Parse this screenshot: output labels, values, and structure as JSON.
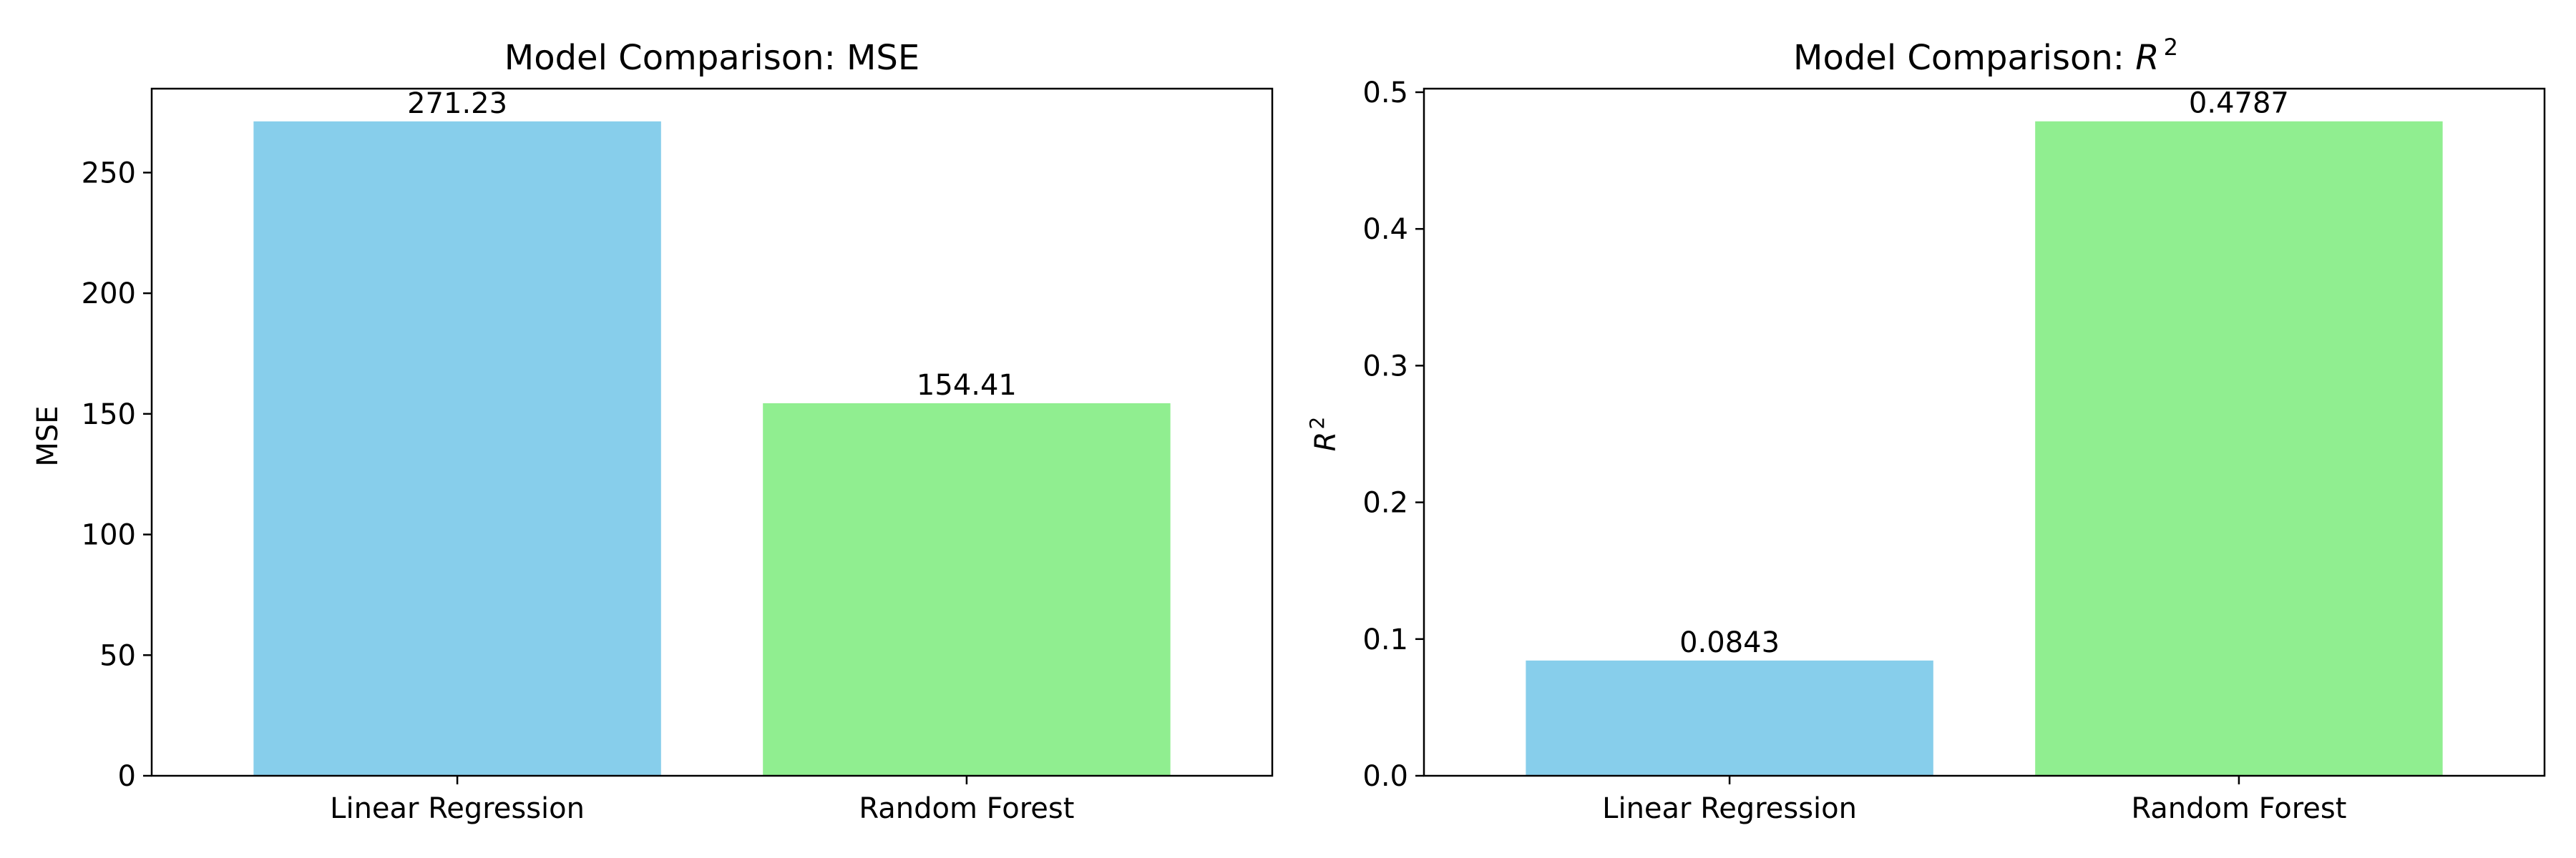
{
  "chart_data": [
    {
      "type": "bar",
      "title": "Model Comparison: MSE",
      "xlabel": "",
      "ylabel": "MSE",
      "categories": [
        "Linear Regression",
        "Random Forest"
      ],
      "values": [
        271.23,
        154.41
      ],
      "value_labels": [
        "271.23",
        "154.41"
      ],
      "colors": [
        "#87ceeb",
        "#90ee90"
      ],
      "ylim": [
        0,
        284.79
      ],
      "yticks": [
        0,
        50,
        100,
        150,
        200,
        250
      ],
      "ytick_labels": [
        "0",
        "50",
        "100",
        "150",
        "200",
        "250"
      ],
      "grid": false,
      "legend": "none"
    },
    {
      "type": "bar",
      "title_text": "Model Comparison: ",
      "title_math": "R",
      "title_sup": "2",
      "xlabel": "",
      "ylabel_math": "R",
      "ylabel_sup": "2",
      "categories": [
        "Linear Regression",
        "Random Forest"
      ],
      "values": [
        0.0843,
        0.4787
      ],
      "value_labels": [
        "0.0843",
        "0.4787"
      ],
      "colors": [
        "#87ceeb",
        "#90ee90"
      ],
      "ylim": [
        0,
        0.5026
      ],
      "yticks": [
        0.0,
        0.1,
        0.2,
        0.3,
        0.4,
        0.5
      ],
      "ytick_labels": [
        "0.0",
        "0.1",
        "0.2",
        "0.3",
        "0.4",
        "0.5"
      ],
      "grid": false,
      "legend": "none"
    }
  ]
}
